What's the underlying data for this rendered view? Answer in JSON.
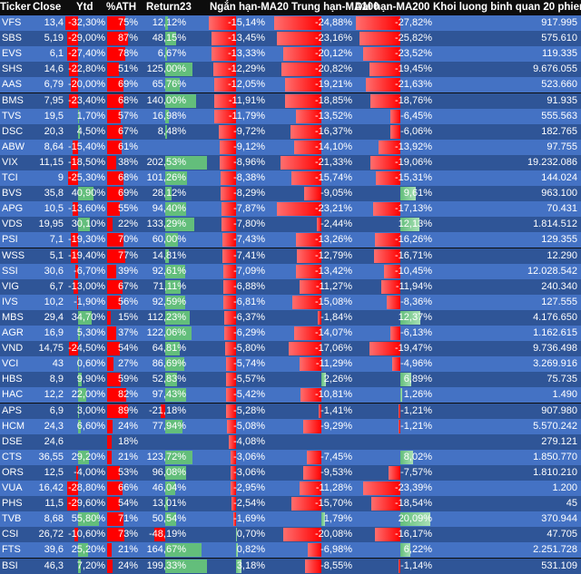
{
  "headers": [
    "Ticker",
    "Close",
    "Ytd",
    "%ATH",
    "Return23",
    "Ngắn hạn-MA20",
    "Trung hạn-MA100",
    "Dài hạn-MA200",
    "Khoi luong binh quan 20 phien"
  ],
  "colors": {
    "row_even": "#4472c4",
    "row_odd": "#2f5597",
    "bar_negative": "#ff0000",
    "bar_positive": "#63be7b",
    "header_bg": "#0d0d0d"
  },
  "chart_data": {
    "type": "table",
    "columns": [
      "Ticker",
      "Close",
      "Ytd",
      "%ATH",
      "Return23",
      "Ngắn hạn-MA20",
      "Trung hạn-MA100",
      "Dài hạn-MA200",
      "Khoi luong binh quan 20 phien"
    ],
    "rows": [
      {
        "ticker": "VFS",
        "close": "13,4",
        "ytd": "-32,30%",
        "ath": "75%",
        "ret": "12,12%",
        "ma20": "-15,14%",
        "ma100": "-24,88%",
        "ma200": "-27,82%",
        "vol": "917.995"
      },
      {
        "ticker": "SBS",
        "close": "5,19",
        "ytd": "-29,00%",
        "ath": "87%",
        "ret": "48,15%",
        "ma20": "-13,45%",
        "ma100": "-23,16%",
        "ma200": "-25,82%",
        "vol": "575.610"
      },
      {
        "ticker": "EVS",
        "close": "6,1",
        "ytd": "-27,40%",
        "ath": "78%",
        "ret": "6,67%",
        "ma20": "-13,33%",
        "ma100": "-20,12%",
        "ma200": "-23,52%",
        "vol": "119.335"
      },
      {
        "ticker": "SHS",
        "close": "14,6",
        "ytd": "-22,80%",
        "ath": "51%",
        "ret": "125,00%",
        "ma20": "-12,29%",
        "ma100": "-20,82%",
        "ma200": "-19,45%",
        "vol": "9.676.055"
      },
      {
        "ticker": "AAS",
        "close": "6,79",
        "ytd": "-20,00%",
        "ath": "69%",
        "ret": "65,76%",
        "ma20": "-12,05%",
        "ma100": "-19,21%",
        "ma200": "-21,63%",
        "vol": "523.660"
      },
      {
        "ticker": "BMS",
        "close": "7,95",
        "ytd": "-23,40%",
        "ath": "68%",
        "ret": "140,00%",
        "ma20": "-11,91%",
        "ma100": "-18,85%",
        "ma200": "-18,76%",
        "vol": "91.935"
      },
      {
        "ticker": "TVS",
        "close": "19,5",
        "ytd": "1,70%",
        "ath": "57%",
        "ret": "16,98%",
        "ma20": "-11,79%",
        "ma100": "-13,52%",
        "ma200": "-6,45%",
        "vol": "555.563"
      },
      {
        "ticker": "DSC",
        "close": "20,3",
        "ytd": "4,50%",
        "ath": "67%",
        "ret": "8,48%",
        "ma20": "-9,72%",
        "ma100": "-16,37%",
        "ma200": "-6,06%",
        "vol": "182.765"
      },
      {
        "ticker": "ABW",
        "close": "8,64",
        "ytd": "-15,40%",
        "ath": "61%",
        "ret": "",
        "ma20": "-9,12%",
        "ma100": "-14,10%",
        "ma200": "-13,92%",
        "vol": "97.755"
      },
      {
        "ticker": "VIX",
        "close": "11,15",
        "ytd": "-18,50%",
        "ath": "38%",
        "ret": "202,53%",
        "ma20": "-8,96%",
        "ma100": "-21,33%",
        "ma200": "-19,06%",
        "vol": "19.232.086"
      },
      {
        "ticker": "TCI",
        "close": "9",
        "ytd": "-25,30%",
        "ath": "68%",
        "ret": "101,26%",
        "ma20": "-8,38%",
        "ma100": "-15,74%",
        "ma200": "-15,31%",
        "vol": "144.024"
      },
      {
        "ticker": "BVS",
        "close": "35,8",
        "ytd": "40,90%",
        "ath": "69%",
        "ret": "28,12%",
        "ma20": "-8,29%",
        "ma100": "-9,05%",
        "ma200": "9,61%",
        "vol": "963.100"
      },
      {
        "ticker": "APG",
        "close": "10,5",
        "ytd": "-13,60%",
        "ath": "55%",
        "ret": "94,40%",
        "ma20": "-7,87%",
        "ma100": "-23,21%",
        "ma200": "-17,13%",
        "vol": "70.431"
      },
      {
        "ticker": "VDS",
        "close": "19,95",
        "ytd": "30,10%",
        "ath": "22%",
        "ret": "133,29%",
        "ma20": "-7,80%",
        "ma100": "-2,44%",
        "ma200": "12,13%",
        "vol": "1.814.512"
      },
      {
        "ticker": "PSI",
        "close": "7,1",
        "ytd": "-19,30%",
        "ath": "70%",
        "ret": "60,00%",
        "ma20": "-7,43%",
        "ma100": "-13,26%",
        "ma200": "-16,26%",
        "vol": "129.355"
      },
      {
        "ticker": "WSS",
        "close": "5,1",
        "ytd": "-19,40%",
        "ath": "77%",
        "ret": "14,81%",
        "ma20": "-7,41%",
        "ma100": "-12,79%",
        "ma200": "-16,71%",
        "vol": "12.290"
      },
      {
        "ticker": "SSI",
        "close": "30,6",
        "ytd": "-6,70%",
        "ath": "39%",
        "ret": "92,61%",
        "ma20": "-7,09%",
        "ma100": "-13,42%",
        "ma200": "-10,45%",
        "vol": "12.028.542"
      },
      {
        "ticker": "VIG",
        "close": "6,7",
        "ytd": "-13,00%",
        "ath": "67%",
        "ret": "71,11%",
        "ma20": "-6,88%",
        "ma100": "-11,27%",
        "ma200": "-11,94%",
        "vol": "240.340"
      },
      {
        "ticker": "IVS",
        "close": "10,2",
        "ytd": "-1,90%",
        "ath": "56%",
        "ret": "92,59%",
        "ma20": "-6,81%",
        "ma100": "-15,08%",
        "ma200": "-8,36%",
        "vol": "127.555"
      },
      {
        "ticker": "MBS",
        "close": "29,4",
        "ytd": "34,70%",
        "ath": "15%",
        "ret": "112,23%",
        "ma20": "-6,37%",
        "ma100": "-1,84%",
        "ma200": "12,37%",
        "vol": "4.176.650"
      },
      {
        "ticker": "AGR",
        "close": "16,9",
        "ytd": "5,30%",
        "ath": "37%",
        "ret": "122,06%",
        "ma20": "-6,29%",
        "ma100": "-14,07%",
        "ma200": "-6,13%",
        "vol": "1.162.615"
      },
      {
        "ticker": "VND",
        "close": "14,75",
        "ytd": "-24,50%",
        "ath": "54%",
        "ret": "64,81%",
        "ma20": "-5,80%",
        "ma100": "-17,06%",
        "ma200": "-19,47%",
        "vol": "9.736.498"
      },
      {
        "ticker": "VCI",
        "close": "43",
        "ytd": "0,60%",
        "ath": "27%",
        "ret": "86,69%",
        "ma20": "-5,74%",
        "ma100": "-11,29%",
        "ma200": "-4,96%",
        "vol": "3.269.916"
      },
      {
        "ticker": "HBS",
        "close": "8,9",
        "ytd": "9,90%",
        "ath": "59%",
        "ret": "52,83%",
        "ma20": "-5,57%",
        "ma100": "2,26%",
        "ma200": "6,89%",
        "vol": "75.735"
      },
      {
        "ticker": "HAC",
        "close": "12,2",
        "ytd": "22,00%",
        "ath": "82%",
        "ret": "97,43%",
        "ma20": "-5,42%",
        "ma100": "-10,81%",
        "ma200": "1,26%",
        "vol": "1.490"
      },
      {
        "ticker": "APS",
        "close": "6,9",
        "ytd": "3,00%",
        "ath": "89%",
        "ret": "-21,18%",
        "ma20": "-5,28%",
        "ma100": "-1,41%",
        "ma200": "-1,21%",
        "vol": "907.980"
      },
      {
        "ticker": "HCM",
        "close": "24,3",
        "ytd": "6,60%",
        "ath": "24%",
        "ret": "77,94%",
        "ma20": "-5,08%",
        "ma100": "-9,29%",
        "ma200": "-1,21%",
        "vol": "5.570.242"
      },
      {
        "ticker": "DSE",
        "close": "24,6",
        "ytd": "",
        "ath": "18%",
        "ret": "",
        "ma20": "-4,08%",
        "ma100": "",
        "ma200": "",
        "vol": "279.121"
      },
      {
        "ticker": "CTS",
        "close": "36,55",
        "ytd": "29,20%",
        "ath": "21%",
        "ret": "123,72%",
        "ma20": "-3,06%",
        "ma100": "-7,45%",
        "ma200": "8,02%",
        "vol": "1.850.770"
      },
      {
        "ticker": "ORS",
        "close": "12,5",
        "ytd": "-4,00%",
        "ath": "53%",
        "ret": "96,08%",
        "ma20": "-3,06%",
        "ma100": "-9,53%",
        "ma200": "-7,57%",
        "vol": "1.810.210"
      },
      {
        "ticker": "VUA",
        "close": "16,42",
        "ytd": "-28,80%",
        "ath": "66%",
        "ret": "46,04%",
        "ma20": "-2,95%",
        "ma100": "-11,28%",
        "ma200": "-23,39%",
        "vol": "1.200"
      },
      {
        "ticker": "PHS",
        "close": "11,5",
        "ytd": "-29,60%",
        "ath": "54%",
        "ret": "13,01%",
        "ma20": "-2,54%",
        "ma100": "-15,70%",
        "ma200": "-18,54%",
        "vol": "45"
      },
      {
        "ticker": "TVB",
        "close": "8,68",
        "ytd": "55,80%",
        "ath": "71%",
        "ret": "50,54%",
        "ma20": "-1,69%",
        "ma100": "1,79%",
        "ma200": "20,09%",
        "vol": "370.944"
      },
      {
        "ticker": "CSI",
        "close": "26,72",
        "ytd": "-10,60%",
        "ath": "73%",
        "ret": "-48,19%",
        "ma20": "0,70%",
        "ma100": "-20,08%",
        "ma200": "-16,17%",
        "vol": "47.705"
      },
      {
        "ticker": "FTS",
        "close": "39,6",
        "ytd": "25,20%",
        "ath": "21%",
        "ret": "164,67%",
        "ma20": "0,82%",
        "ma100": "-6,98%",
        "ma200": "6,22%",
        "vol": "2.251.728"
      },
      {
        "ticker": "BSI",
        "close": "46,3",
        "ytd": "7,20%",
        "ath": "24%",
        "ret": "199,33%",
        "ma20": "3,18%",
        "ma100": "-8,55%",
        "ma200": "-1,14%",
        "vol": "531.109"
      }
    ]
  }
}
